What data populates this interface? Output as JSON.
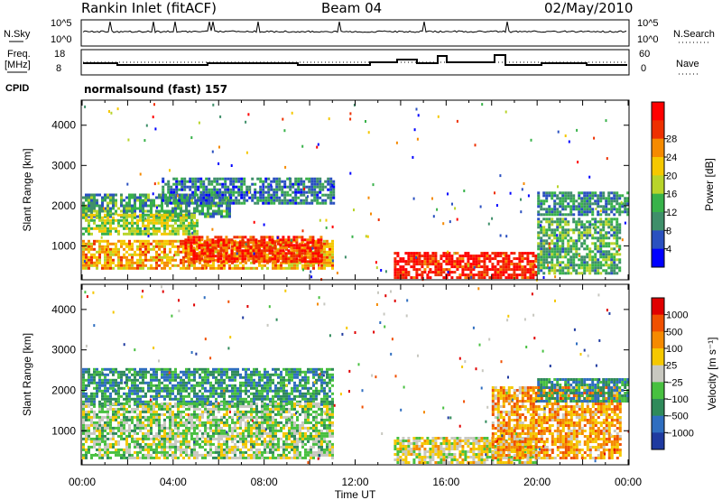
{
  "header": {
    "station": "Rankin Inlet (fitACF)",
    "beam": "Beam 04",
    "date": "02/May/2010"
  },
  "status_panels": {
    "nsky_label": "N.Sky",
    "nsky_ticks": [
      "10^5",
      "10^0"
    ],
    "nsearch_label": "N.Search",
    "nsearch_ticks": [
      "10^5",
      "10^0"
    ],
    "freq_label": "Freq.",
    "freq_unit": "[MHz]",
    "freq_ticks": [
      "18",
      "8"
    ],
    "nave_label": "Nave",
    "nave_ticks": [
      "60",
      "0"
    ],
    "cpid_label": "CPID",
    "cpid_text": "normalsound (fast) 157"
  },
  "chart_data": [
    {
      "type": "heatmap",
      "name": "power",
      "xlabel": "",
      "ylabel": "Slant Range [km]",
      "xlim": [
        "00:00",
        "24:00"
      ],
      "ylim": [
        180,
        4600
      ],
      "yticks": [
        1000,
        2000,
        3000,
        4000
      ],
      "colorbar": {
        "label": "Power [dB]",
        "ticks": [
          4,
          8,
          12,
          16,
          20,
          24,
          28
        ],
        "colors": [
          "#0000ff",
          "#2a50c0",
          "#3f8f6a",
          "#38b24a",
          "#b8d42a",
          "#f5c800",
          "#f58a00",
          "#ee3000",
          "#ff0000"
        ]
      },
      "regions": [
        {
          "t0": 0.0,
          "t1": 6.5,
          "r0": 1700,
          "r1": 2300,
          "level": 0.3
        },
        {
          "t0": 3.5,
          "t1": 11.0,
          "r0": 2050,
          "r1": 2700,
          "level": 0.2
        },
        {
          "t0": 0.0,
          "t1": 5.0,
          "r0": 1300,
          "r1": 1800,
          "level": 0.5
        },
        {
          "t0": 0.0,
          "t1": 11.0,
          "r0": 450,
          "r1": 1150,
          "level": 0.7
        },
        {
          "t0": 4.5,
          "t1": 10.5,
          "r0": 600,
          "r1": 1250,
          "level": 0.9
        },
        {
          "t0": 13.7,
          "t1": 20.0,
          "r0": 200,
          "r1": 850,
          "level": 0.95
        },
        {
          "t0": 20.0,
          "t1": 23.6,
          "r0": 350,
          "r1": 1700,
          "level": 0.35
        },
        {
          "t0": 20.0,
          "t1": 24.0,
          "r0": 1750,
          "r1": 2350,
          "level": 0.25
        }
      ]
    },
    {
      "type": "heatmap",
      "name": "velocity",
      "xlabel": "Time UT",
      "ylabel": "Slant Range [km]",
      "xlim": [
        "00:00",
        "24:00"
      ],
      "ylim": [
        180,
        4600
      ],
      "xticks": [
        "00:00",
        "04:00",
        "08:00",
        "12:00",
        "16:00",
        "20:00",
        "00:00"
      ],
      "yticks": [
        1000,
        2000,
        3000,
        4000
      ],
      "colorbar": {
        "label": "Velocity [m s⁻¹]",
        "ticks": [
          "1000",
          "500",
          "100",
          "25",
          "−25",
          "−100",
          "−500",
          "−1000"
        ],
        "colors": [
          "#1f3aa0",
          "#2f6ec0",
          "#2f8a5a",
          "#48c040",
          "#c8c8c0",
          "#f5c800",
          "#f58a00",
          "#f05000",
          "#e00000"
        ]
      },
      "regions": [
        {
          "t0": 0.0,
          "t1": 11.0,
          "r0": 1650,
          "r1": 2550,
          "level": 0.25
        },
        {
          "t0": 0.0,
          "t1": 11.0,
          "r0": 350,
          "r1": 1700,
          "level": 0.45
        },
        {
          "t0": 13.7,
          "t1": 20.0,
          "r0": 200,
          "r1": 850,
          "level": 0.55
        },
        {
          "t0": 18.0,
          "t1": 23.6,
          "r0": 300,
          "r1": 2100,
          "level": 0.7
        },
        {
          "t0": 20.0,
          "t1": 24.0,
          "r0": 1750,
          "r1": 2300,
          "level": 0.25
        }
      ]
    }
  ]
}
